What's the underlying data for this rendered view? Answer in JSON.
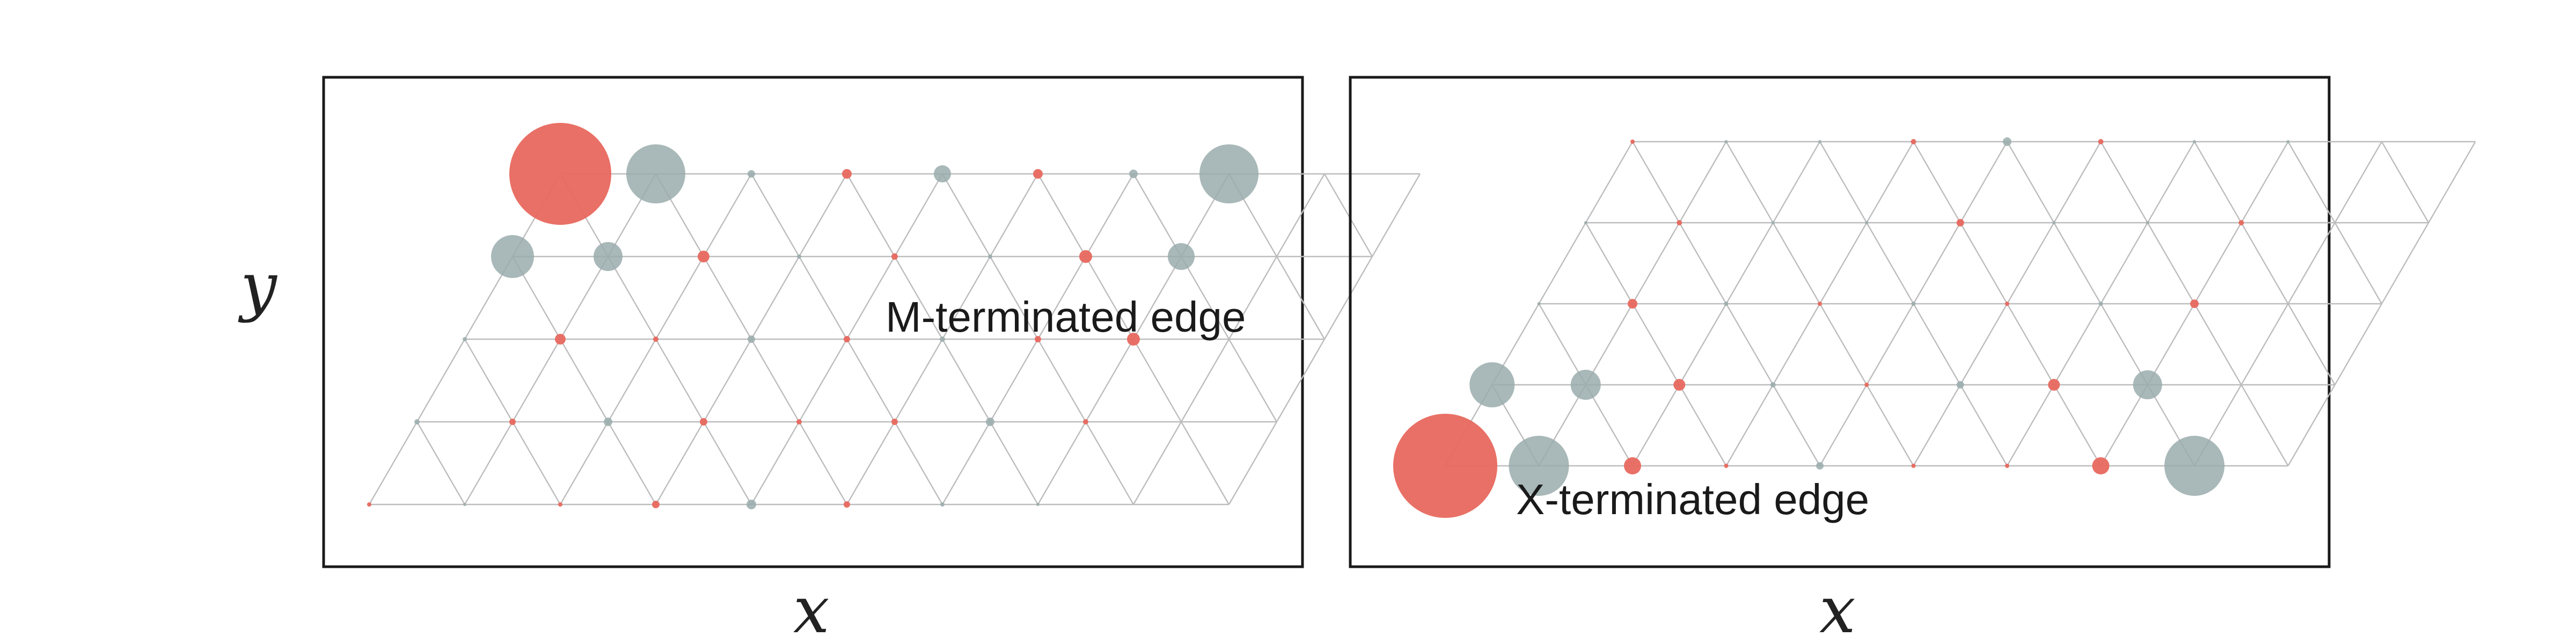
{
  "colors": {
    "metal": "#e8685e",
    "chalcogen": "#9aabab",
    "lattice": "#bdbdbd",
    "frame": "#1a1a1a"
  },
  "panels": [
    {
      "name": "m-terminated",
      "x_label": "x",
      "y_label": "y",
      "edge_label": "M-terminated edge"
    },
    {
      "name": "x-terminated",
      "x_label": "x",
      "y_label": "",
      "edge_label": "X-terminated edge"
    }
  ]
}
